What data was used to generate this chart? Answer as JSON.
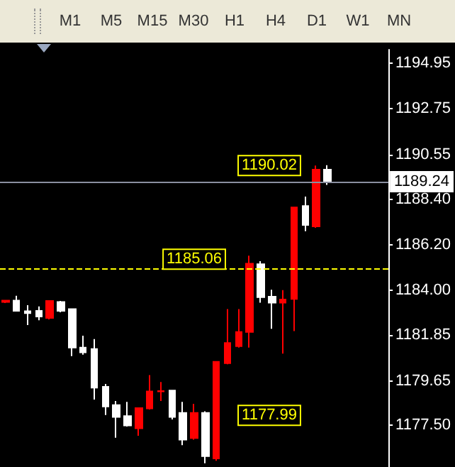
{
  "chart_data": {
    "type": "candlestick",
    "categories": [
      null,
      null,
      null,
      null,
      null,
      null,
      null,
      null,
      null,
      null,
      null,
      null,
      null,
      null,
      null,
      null,
      null,
      null,
      null,
      null,
      null,
      null,
      null,
      null,
      null,
      null,
      null,
      null,
      null,
      null,
      null,
      null,
      null,
      null,
      null
    ],
    "ohlc": [
      [
        1183.45,
        1183.55,
        1183.4,
        1183.52
      ],
      [
        1183.52,
        1183.75,
        1183.02,
        1183.02
      ],
      [
        1183.0,
        1183.29,
        1182.34,
        1182.91
      ],
      [
        1183.02,
        1183.23,
        1182.57,
        1182.75
      ],
      [
        1182.68,
        1183.5,
        1182.61,
        1183.5
      ],
      [
        1183.45,
        1183.5,
        1182.95,
        1183.02
      ],
      [
        1183.11,
        1183.11,
        1180.84,
        1181.25
      ],
      [
        1181.25,
        1181.82,
        1180.91,
        1181.02
      ],
      [
        1181.18,
        1181.66,
        1178.75,
        1179.32
      ],
      [
        1179.36,
        1179.5,
        1178.0,
        1178.41
      ],
      [
        1178.48,
        1178.68,
        1176.91,
        1177.91
      ],
      [
        1177.95,
        1178.64,
        1177.45,
        1177.5
      ],
      [
        1177.36,
        1178.34,
        1177.0,
        1178.34
      ],
      [
        1178.32,
        1179.93,
        1178.27,
        1179.14
      ],
      [
        1179.14,
        1179.59,
        1178.68,
        1179.16
      ],
      [
        1179.18,
        1179.18,
        1177.79,
        1177.91
      ],
      [
        1178.11,
        1178.64,
        1176.55,
        1176.82
      ],
      [
        1176.89,
        1178.54,
        1176.82,
        1178.11
      ],
      [
        1178.11,
        1178.18,
        1175.68,
        1176.02
      ],
      [
        1175.91,
        1180.57,
        1175.8,
        1180.57
      ],
      [
        1180.5,
        1183.11,
        1180.45,
        1181.47
      ],
      [
        1181.32,
        1183.11,
        1181.25,
        1182.0
      ],
      [
        1182.0,
        1185.68,
        1181.25,
        1185.29
      ],
      [
        1185.27,
        1185.41,
        1183.41,
        1183.68
      ],
      [
        1183.7,
        1184.04,
        1182.16,
        1183.41
      ],
      [
        1183.41,
        1184.02,
        1180.96,
        1183.57
      ],
      [
        1183.59,
        1188.0,
        1182.05,
        1188.0
      ],
      [
        1188.07,
        1188.52,
        1186.86,
        1187.16
      ],
      [
        1187.09,
        1190.02,
        1187.02,
        1189.82
      ],
      [
        1189.82,
        1190.04,
        1189.09,
        1189.24
      ],
      null,
      null,
      null,
      null,
      null
    ],
    "ylim": [
      1175.5,
      1195.6
    ],
    "yticks": [
      {
        "value": 1177.5,
        "label": "1177.50"
      },
      1179.65,
      1181.85,
      {
        "value": 1184,
        "label": "1184.00"
      },
      {
        "value": 1186.2,
        "label": "1186.20"
      },
      {
        "value": 1188.4,
        "label": "1188.40"
      },
      1190.55,
      1192.75,
      1194.95
    ],
    "tick_labels": "y",
    "grid": false,
    "ref_lines": [
      {
        "axis": "y",
        "value": 1185.06,
        "label": "1185.06",
        "color": "#ffff00",
        "line_style": "dashed"
      },
      {
        "axis": "y",
        "value": 1189.24,
        "label": "1189.24",
        "color": "#8a8fa0",
        "line_style": "solid"
      }
    ],
    "annotations": [
      "M1",
      "M5",
      "M15",
      "M30",
      "H1",
      "H4",
      "D1",
      "W1",
      "MN",
      {
        "text": "1190.02",
        "y": 1190.02
      },
      {
        "text": "1177.99",
        "y": 1177.99
      }
    ]
  }
}
